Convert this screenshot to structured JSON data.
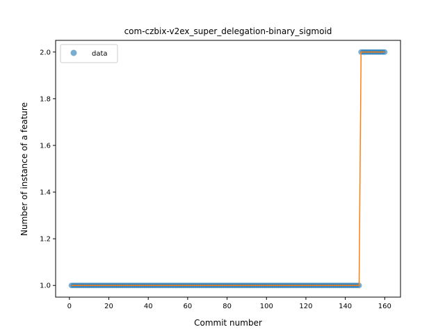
{
  "chart_data": {
    "type": "scatter",
    "title": "com-czbix-v2ex_super_delegation-binary_sigmoid",
    "xlabel": "Commit number",
    "ylabel": "Number of instance of a feature",
    "xlim": [
      -7,
      168
    ],
    "ylim": [
      0.95,
      2.05
    ],
    "xticks": [
      0,
      20,
      40,
      60,
      80,
      100,
      120,
      140,
      160
    ],
    "yticks": [
      1.0,
      1.2,
      1.4,
      1.6,
      1.8,
      2.0
    ],
    "xtick_labels": [
      "0",
      "20",
      "40",
      "60",
      "80",
      "100",
      "120",
      "140",
      "160"
    ],
    "ytick_labels": [
      "1.0",
      "1.2",
      "1.4",
      "1.6",
      "1.8",
      "2.0"
    ],
    "legend": {
      "entries": [
        "data"
      ],
      "placement": "top-left"
    },
    "grid": false,
    "series": [
      {
        "name": "data",
        "kind": "scatter",
        "color": "#1f77b4",
        "segments": [
          {
            "x_start": 1,
            "x_end": 147,
            "y": 1
          },
          {
            "x_start": 148,
            "x_end": 160,
            "y": 2
          }
        ]
      },
      {
        "kind": "line",
        "color": "#ff7f0e",
        "x": [
          1,
          147,
          148,
          160
        ],
        "y": [
          1,
          1,
          2,
          2
        ]
      }
    ]
  }
}
